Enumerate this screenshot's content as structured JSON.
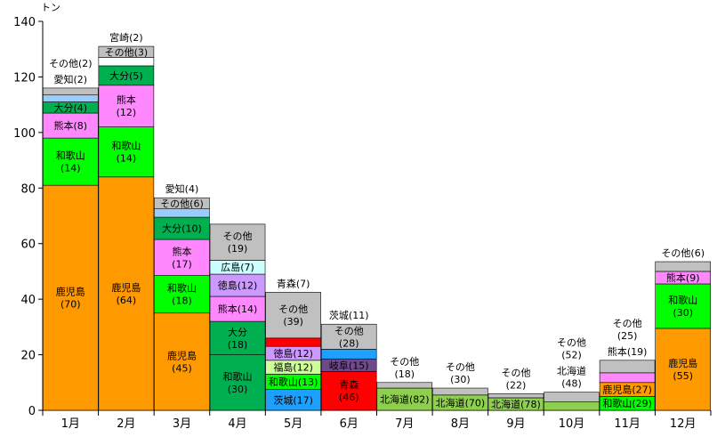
{
  "chart_data": {
    "type": "bar",
    "stacked": true,
    "y_unit": "トン",
    "ylim": [
      0,
      140
    ],
    "yticks": [
      0,
      20,
      40,
      60,
      80,
      100,
      120,
      140
    ],
    "grid": false,
    "categories": [
      "1月",
      "2月",
      "3月",
      "4月",
      "5月",
      "6月",
      "7月",
      "8月",
      "9月",
      "10月",
      "11月",
      "12月"
    ],
    "colors": {
      "orange": "#ff9900",
      "green": "#00ff00",
      "pink": "#ff88ff",
      "dkgreen": "#00b050",
      "ltblue": "#99ccff",
      "gray": "#c0c0c0",
      "ltcyan": "#ccffff",
      "lavender": "#cc99ff",
      "ltgreen": "#ccff99",
      "blue": "#1ea0ff",
      "red": "#ff0000",
      "purple": "#6e4a8a",
      "olive": "#8fcf4f"
    },
    "months": [
      {
        "month": "1月",
        "segments": [
          {
            "value": 81,
            "color": "orange",
            "label": "鹿児島",
            "share": "(70)"
          },
          {
            "value": 17,
            "color": "green",
            "label": "和歌山",
            "share": "(14)"
          },
          {
            "value": 9,
            "color": "pink",
            "label": "熊本(8)"
          },
          {
            "value": 4,
            "color": "dkgreen",
            "label": "大分(4)"
          },
          {
            "value": 2.5,
            "color": "ltblue",
            "label": "愛知(2)"
          },
          {
            "value": 2.5,
            "color": "gray",
            "label": "その他(2)"
          }
        ]
      },
      {
        "month": "2月",
        "segments": [
          {
            "value": 84,
            "color": "orange",
            "label": "鹿児島",
            "share": "(64)"
          },
          {
            "value": 18,
            "color": "green",
            "label": "和歌山",
            "share": "(14)"
          },
          {
            "value": 15,
            "color": "pink",
            "label": "熊本",
            "share": "(12)"
          },
          {
            "value": 7,
            "color": "dkgreen",
            "label": "大分(5)"
          },
          {
            "value": 3,
            "color": "white",
            "label": "宮崎(2)"
          },
          {
            "value": 4,
            "color": "gray",
            "label": "その他(3)"
          }
        ]
      },
      {
        "month": "3月",
        "segments": [
          {
            "value": 35,
            "color": "orange",
            "label": "鹿児島",
            "share": "(45)"
          },
          {
            "value": 13.5,
            "color": "green",
            "label": "和歌山",
            "share": "(18)"
          },
          {
            "value": 13,
            "color": "pink",
            "label": "熊本",
            "share": "(17)"
          },
          {
            "value": 8,
            "color": "dkgreen",
            "label": "大分(10)"
          },
          {
            "value": 3,
            "color": "ltblue",
            "label": "愛知(4)"
          },
          {
            "value": 4,
            "color": "gray",
            "label": "その他(6)"
          }
        ]
      },
      {
        "month": "4月",
        "segments": [
          {
            "value": 20,
            "color": "dkgreen",
            "label": "和歌山",
            "share": "(30)"
          },
          {
            "value": 12,
            "color": "dkgreen",
            "label": "大分",
            "share": "(18)"
          },
          {
            "value": 9,
            "color": "pink",
            "label": "熊本(14)"
          },
          {
            "value": 8,
            "color": "lavender",
            "label": "徳島(12)"
          },
          {
            "value": 5,
            "color": "ltcyan",
            "label": "広島(7)"
          },
          {
            "value": 13,
            "color": "gray",
            "label": "その他",
            "share": "(19)"
          }
        ]
      },
      {
        "month": "5月",
        "segments": [
          {
            "value": 7.5,
            "color": "blue",
            "label": "茨城(17)"
          },
          {
            "value": 5.5,
            "color": "green",
            "label": "和歌山(13)"
          },
          {
            "value": 5,
            "color": "ltgreen",
            "label": "福島(12)"
          },
          {
            "value": 5,
            "color": "lavender",
            "label": "徳島(12)"
          },
          {
            "value": 3,
            "color": "red",
            "label": "青森(7)"
          },
          {
            "value": 16.5,
            "color": "gray",
            "label": "その他",
            "share": "(39)"
          }
        ]
      },
      {
        "month": "6月",
        "segments": [
          {
            "value": 14,
            "color": "red",
            "label": "青森",
            "share": "(46)"
          },
          {
            "value": 4.5,
            "color": "purple",
            "label": "岐阜(15)"
          },
          {
            "value": 3.5,
            "color": "blue",
            "label": "茨城(11)"
          },
          {
            "value": 9,
            "color": "gray",
            "label": "その他",
            "share": "(28)"
          }
        ]
      },
      {
        "month": "7月",
        "segments": [
          {
            "value": 8,
            "color": "olive",
            "label": "北海道(82)"
          },
          {
            "value": 2,
            "color": "gray",
            "label": "その他",
            "share": "(18)"
          }
        ]
      },
      {
        "month": "8月",
        "segments": [
          {
            "value": 5.5,
            "color": "olive",
            "label": "北海道(70)"
          },
          {
            "value": 2.5,
            "color": "gray",
            "label": "その他",
            "share": "(30)"
          }
        ]
      },
      {
        "month": "9月",
        "segments": [
          {
            "value": 4.5,
            "color": "olive",
            "label": "北海道(78)"
          },
          {
            "value": 1.5,
            "color": "gray",
            "label": "その他",
            "share": "(22)"
          }
        ]
      },
      {
        "month": "10月",
        "segments": [
          {
            "value": 3,
            "color": "olive",
            "label": "北海道",
            "share": "(48)"
          },
          {
            "value": 3.5,
            "color": "gray",
            "label": "その他",
            "share": "(52)"
          }
        ]
      },
      {
        "month": "11月",
        "segments": [
          {
            "value": 5,
            "color": "green",
            "label": "和歌山(29)"
          },
          {
            "value": 5,
            "color": "orange",
            "label": "鹿児島(27)"
          },
          {
            "value": 3.5,
            "color": "pink",
            "label": "熊本(19)"
          },
          {
            "value": 4.5,
            "color": "gray",
            "label": "その他",
            "share": "(25)"
          }
        ]
      },
      {
        "month": "12月",
        "segments": [
          {
            "value": 29.5,
            "color": "orange",
            "label": "鹿児島",
            "share": "(55)"
          },
          {
            "value": 16,
            "color": "green",
            "label": "和歌山",
            "share": "(30)"
          },
          {
            "value": 4.5,
            "color": "pink",
            "label": "熊本(9)"
          },
          {
            "value": 3.5,
            "color": "gray",
            "label": "その他(6)"
          }
        ]
      }
    ]
  }
}
